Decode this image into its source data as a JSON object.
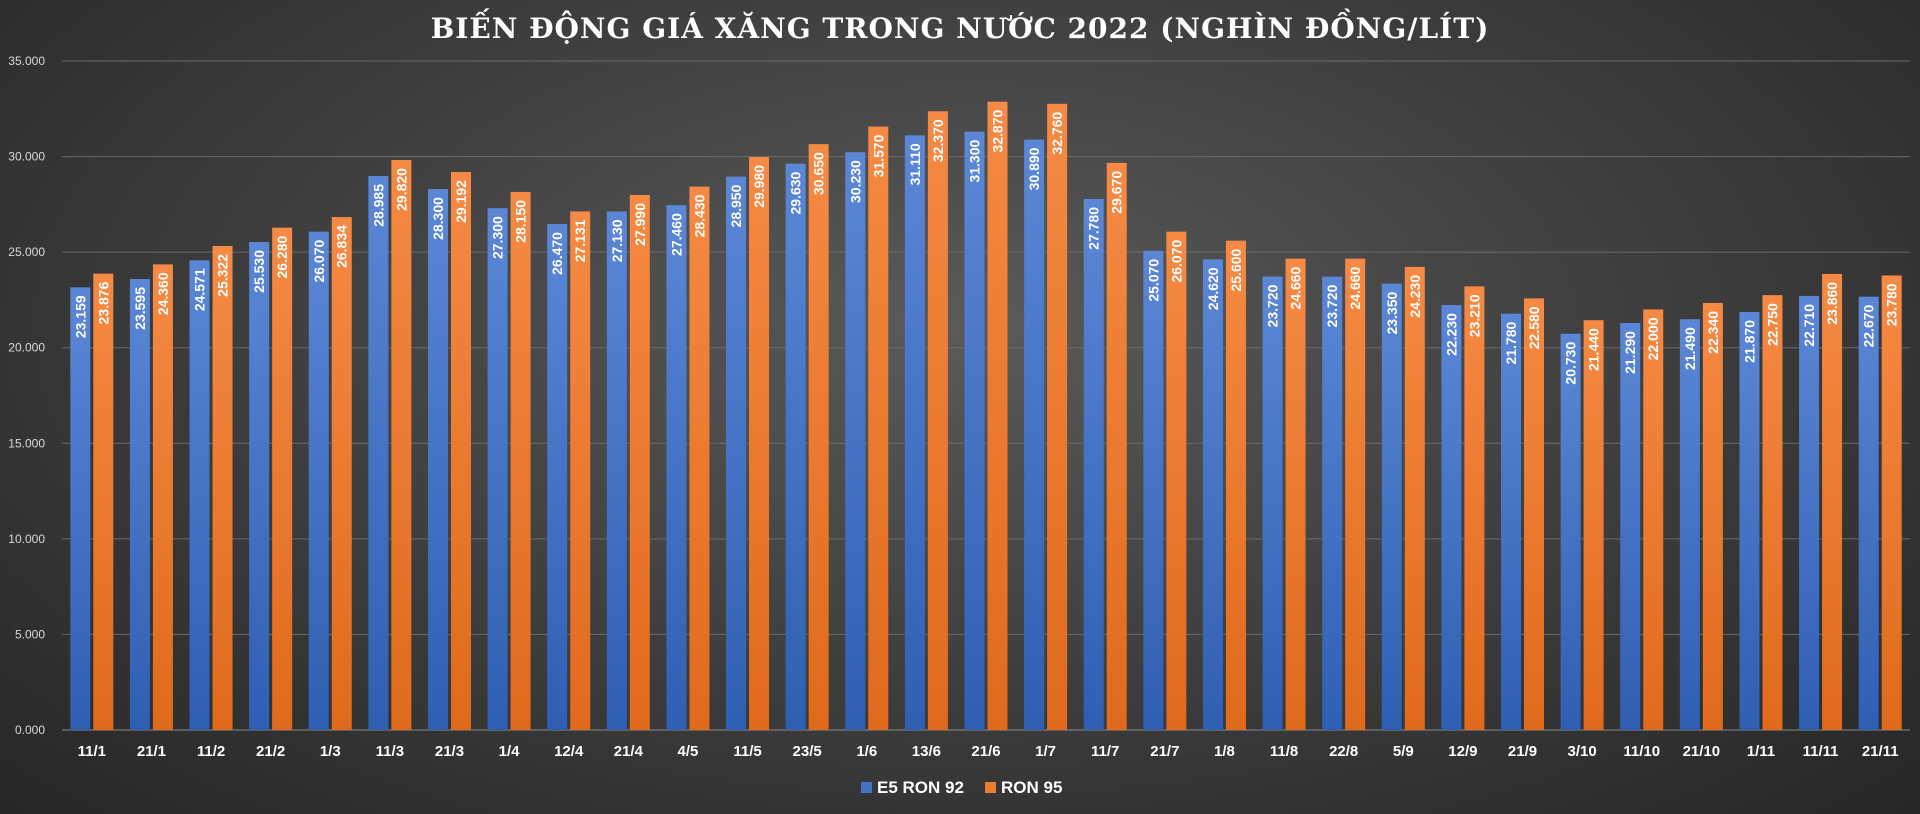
{
  "chart_data": {
    "type": "bar",
    "title": "BIẾN ĐỘNG GIÁ XĂNG TRONG NƯỚC 2022 (NGHÌN ĐỒNG/LÍT)",
    "xlabel": "",
    "ylabel": "",
    "ylim": [
      0,
      35000
    ],
    "yticks": [
      "0.000",
      "5.000",
      "10.000",
      "15.000",
      "20.000",
      "25.000",
      "30.000",
      "35.000"
    ],
    "grid": true,
    "legend_position": "bottom",
    "categories": [
      "11/1",
      "21/1",
      "11/2",
      "21/2",
      "1/3",
      "11/3",
      "21/3",
      "1/4",
      "12/4",
      "21/4",
      "4/5",
      "11/5",
      "23/5",
      "1/6",
      "13/6",
      "21/6",
      "1/7",
      "11/7",
      "21/7",
      "1/8",
      "11/8",
      "22/8",
      "5/9",
      "12/9",
      "21/9",
      "3/10",
      "11/10",
      "21/10",
      "1/11",
      "11/11",
      "21/11"
    ],
    "series": [
      {
        "name": "E5 RON 92",
        "color": "#4472C4",
        "values": [
          23159,
          23595,
          24571,
          25530,
          26070,
          28985,
          28300,
          27300,
          26470,
          27130,
          27460,
          28950,
          29630,
          30230,
          31110,
          31300,
          30890,
          27780,
          25070,
          24620,
          23720,
          23720,
          23350,
          22230,
          21780,
          20730,
          21290,
          21490,
          21870,
          22710,
          22670
        ],
        "labels": [
          "23.159",
          "23.595",
          "24.571",
          "25.530",
          "26.070",
          "28.985",
          "28.300",
          "27.300",
          "26.470",
          "27.130",
          "27.460",
          "28.950",
          "29.630",
          "30.230",
          "31.110",
          "31.300",
          "30.890",
          "27.780",
          "25.070",
          "24.620",
          "23.720",
          "23.720",
          "23.350",
          "22.230",
          "21.780",
          "20.730",
          "21.290",
          "21.490",
          "21.870",
          "22.710",
          "22.670"
        ]
      },
      {
        "name": "RON 95",
        "color": "#ED7D31",
        "values": [
          23876,
          24360,
          25322,
          26280,
          26834,
          29820,
          29192,
          28150,
          27131,
          27990,
          28430,
          29980,
          30650,
          31570,
          32370,
          32870,
          32760,
          29670,
          26070,
          25600,
          24660,
          24660,
          24230,
          23210,
          22580,
          21440,
          22000,
          22340,
          22750,
          23860,
          23780
        ],
        "labels": [
          "23.876",
          "24.360",
          "25.322",
          "26.280",
          "26.834",
          "29.820",
          "29.192",
          "28.150",
          "27.131",
          "27.990",
          "28.430",
          "29.980",
          "30.650",
          "31.570",
          "32.370",
          "32.870",
          "32.760",
          "29.670",
          "26.070",
          "25.600",
          "24.660",
          "24.660",
          "24.230",
          "23.210",
          "22.580",
          "21.440",
          "22.000",
          "22.340",
          "22.750",
          "23.860",
          "23.780"
        ]
      }
    ]
  }
}
